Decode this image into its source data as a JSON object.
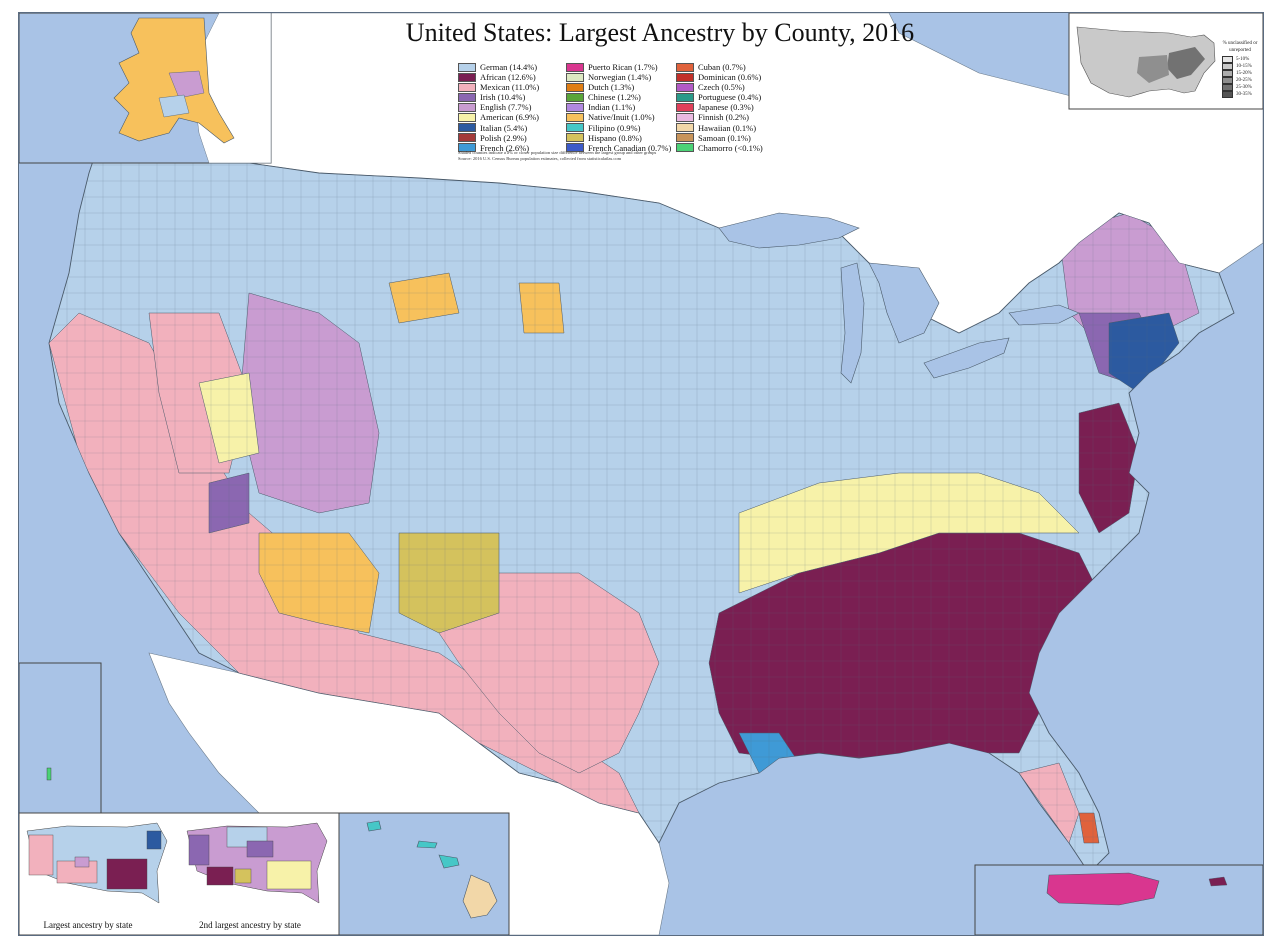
{
  "map": {
    "title": "United States: Largest Ancestry by County, 2016",
    "legend_col1": [
      {
        "label": "German (14.4%)",
        "color": "#b6d1ea"
      },
      {
        "label": "African (12.6%)",
        "color": "#7a1f52"
      },
      {
        "label": "Mexican (11.0%)",
        "color": "#f2b1bd"
      },
      {
        "label": "Irish (10.4%)",
        "color": "#8b67b1"
      },
      {
        "label": "English (7.7%)",
        "color": "#c99cd1"
      },
      {
        "label": "American (6.9%)",
        "color": "#f7f2a9"
      },
      {
        "label": "Italian (5.4%)",
        "color": "#2c5aa0"
      },
      {
        "label": "Polish (2.9%)",
        "color": "#a33a3a"
      },
      {
        "label": "French (2.6%)",
        "color": "#3f9ad6"
      }
    ],
    "legend_col2": [
      {
        "label": "Puerto Rican (1.7%)",
        "color": "#d9368f"
      },
      {
        "label": "Norwegian (1.4%)",
        "color": "#dde8c2"
      },
      {
        "label": "Dutch (1.3%)",
        "color": "#e07e14"
      },
      {
        "label": "Chinese (1.2%)",
        "color": "#5aa539"
      },
      {
        "label": "Indian (1.1%)",
        "color": "#b188e0"
      },
      {
        "label": "Native/Inuit (1.0%)",
        "color": "#f7c15c"
      },
      {
        "label": "Filipino (0.9%)",
        "color": "#46c7c7"
      },
      {
        "label": "Hispano (0.8%)",
        "color": "#d4c25d"
      },
      {
        "label": "French Canadian (0.7%)",
        "color": "#3c5ac9"
      }
    ],
    "legend_col3": [
      {
        "label": "Cuban (0.7%)",
        "color": "#e0623c"
      },
      {
        "label": "Dominican (0.6%)",
        "color": "#c2302a"
      },
      {
        "label": "Czech (0.5%)",
        "color": "#b25ac5"
      },
      {
        "label": "Portuguese (0.4%)",
        "color": "#2a9a8a"
      },
      {
        "label": "Japanese (0.3%)",
        "color": "#e0405a"
      },
      {
        "label": "Finnish (0.2%)",
        "color": "#e9b9e0"
      },
      {
        "label": "Hawaiian (0.1%)",
        "color": "#f2d7a8"
      },
      {
        "label": "Samoan (0.1%)",
        "color": "#c8945a"
      },
      {
        "label": "Chamorro (<0.1%)",
        "color": "#4bd276"
      }
    ],
    "note_line1": "Shaded counties indicate a 2% or closer population size difference between the largest group and other groups",
    "note_line2": "Source: 2016 U.S. Census Bureau population estimates, collected from statisticalatlas.com",
    "unclassified": {
      "title": "% unclassified or unreported",
      "levels": [
        {
          "label": "5-10%",
          "color": "#e6e6e6"
        },
        {
          "label": "10-15%",
          "color": "#c9c9c9"
        },
        {
          "label": "15-20%",
          "color": "#adadad"
        },
        {
          "label": "20-25%",
          "color": "#8f8f8f"
        },
        {
          "label": "25-30%",
          "color": "#727272"
        },
        {
          "label": "30-35%",
          "color": "#545454"
        }
      ]
    },
    "inset_state_label": "Largest ancestry by state",
    "inset_state2_label": "2nd largest ancestry by state"
  }
}
